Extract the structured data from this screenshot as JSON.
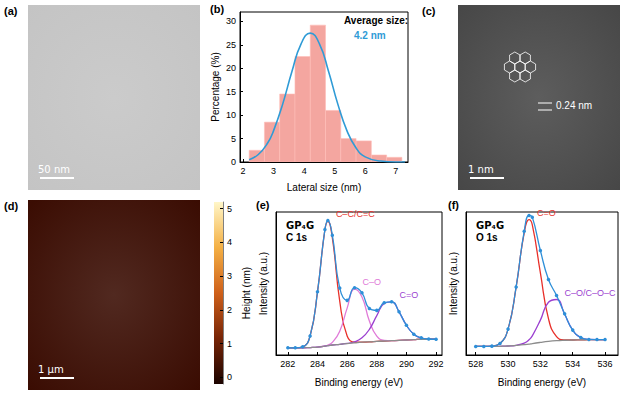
{
  "chart_data": [
    {
      "type": "image",
      "panel_label": "(a)",
      "scale_bar": "50 nm"
    },
    {
      "type": "histogram",
      "panel_label": "(b)",
      "x_label": "Lateral size (nm)",
      "y_label": "Percentage (%)",
      "annotations": [
        {
          "text": "Average size:",
          "color": "#000000"
        },
        {
          "text": "4.2 nm",
          "color": "#2f9bd6"
        }
      ],
      "xlim": [
        1.9,
        7.4
      ],
      "xticks": [
        2,
        3,
        4,
        5,
        6,
        7
      ],
      "ylim": [
        0,
        32
      ],
      "yticks": [
        0,
        5,
        10,
        15,
        20,
        25,
        30
      ],
      "series": [
        {
          "type": "histogram",
          "bins": [
            2.2,
            2.7,
            3.2,
            3.7,
            4.2,
            4.7,
            5.2,
            5.7,
            6.2,
            6.7,
            7.2
          ],
          "values": [
            2.5,
            8.5,
            14.5,
            22.5,
            29.2,
            11,
            5,
            4.5,
            1.5,
            1
          ],
          "color": "#f4a6a0"
        },
        {
          "type": "line",
          "x": [
            2.2,
            2.5,
            2.8,
            3.0,
            3.3,
            3.6,
            3.9,
            4.2,
            4.5,
            4.8,
            5.1,
            5.4,
            5.7,
            6.0,
            6.5,
            7.0,
            7.3
          ],
          "values": [
            0.5,
            1.6,
            4.0,
            6.7,
            12.4,
            19.3,
            25.2,
            27.5,
            25.2,
            19.3,
            12.4,
            6.7,
            3.0,
            1.1,
            0.2,
            0.0,
            0.0
          ],
          "color": "#2f9bd6"
        }
      ]
    },
    {
      "type": "image",
      "panel_label": "(c)",
      "scale_bar": "1 nm",
      "annotation": "0.24 nm"
    },
    {
      "type": "image",
      "panel_label": "(d)",
      "scale_bar": "1 μm",
      "colorbar": {
        "label": "Height (nm)",
        "range": [
          -0.2,
          5.2
        ],
        "ticks": [
          0,
          1,
          2,
          3,
          4,
          5
        ]
      }
    },
    {
      "type": "line",
      "panel_label": "(e)",
      "title": "GP₄G",
      "subtitle": "C 1s",
      "x_label": "Binding energy (eV)",
      "y_label": "Intensity (a.u.)",
      "tick_labels": "x",
      "xlim": [
        281.2,
        292.4
      ],
      "xticks": [
        282,
        284,
        286,
        288,
        290,
        292
      ],
      "ylim": [
        0,
        1
      ],
      "x": [
        282,
        282.5,
        283,
        283.5,
        284,
        284.5,
        284.7,
        285,
        285.5,
        286,
        286.5,
        287,
        287.5,
        288,
        288.5,
        289,
        289.5,
        290,
        290.5,
        291,
        291.5,
        292
      ],
      "series": [
        {
          "name": "C–C/C=C",
          "color": "#e8302a",
          "line_style": "solid",
          "values": [
            0.05,
            0.05,
            0.057,
            0.133,
            0.442,
            0.876,
            0.935,
            0.82,
            0.377,
            0.133,
            0.089,
            0.09,
            0.092,
            0.095,
            0.098,
            0.1,
            0.102,
            0.105,
            0.107,
            0.11,
            0.11,
            0.11
          ]
        },
        {
          "name": "C–O",
          "color": "#e07ad8",
          "line_style": "solid",
          "values": [
            0.05,
            0.05,
            0.05,
            0.052,
            0.055,
            0.064,
            0.07,
            0.088,
            0.166,
            0.328,
            0.46,
            0.405,
            0.238,
            0.132,
            0.103,
            0.1,
            0.102,
            0.105,
            0.107,
            0.11,
            0.11,
            0.11
          ]
        },
        {
          "name": "C=O",
          "color": "#9b3fd0",
          "line_style": "solid",
          "values": [
            0.05,
            0.05,
            0.05,
            0.052,
            0.055,
            0.062,
            0.065,
            0.07,
            0.075,
            0.081,
            0.092,
            0.12,
            0.179,
            0.275,
            0.361,
            0.372,
            0.302,
            0.208,
            0.145,
            0.12,
            0.112,
            0.11
          ]
        },
        {
          "color": "#8c8c8c",
          "line_style": "solid",
          "values": [
            0.05,
            0.05,
            0.05,
            0.052,
            0.055,
            0.062,
            0.065,
            0.07,
            0.075,
            0.08,
            0.085,
            0.09,
            0.092,
            0.095,
            0.098,
            0.1,
            0.102,
            0.105,
            0.107,
            0.11,
            0.11,
            0.11
          ]
        },
        {
          "color": "#2e8fd8",
          "line_style": "solid",
          "marker": "circle",
          "values": [
            0.05,
            0.05,
            0.057,
            0.133,
            0.442,
            0.878,
            0.94,
            0.838,
            0.468,
            0.382,
            0.471,
            0.435,
            0.325,
            0.312,
            0.366,
            0.372,
            0.302,
            0.208,
            0.145,
            0.12,
            0.112,
            0.11
          ]
        }
      ]
    },
    {
      "type": "line",
      "panel_label": "(f)",
      "title": "GP₄G",
      "subtitle": "O 1s",
      "x_label": "Binding energy (eV)",
      "y_label": "Intensity (a.u.)",
      "tick_labels": "x",
      "xlim": [
        527.4,
        536.8
      ],
      "xticks": [
        528,
        530,
        532,
        534,
        536
      ],
      "ylim": [
        0,
        1
      ],
      "x": [
        528,
        528.5,
        529,
        529.5,
        530,
        530.5,
        531,
        531.3,
        531.5,
        532,
        532.5,
        533,
        533.5,
        534,
        534.5,
        535,
        535.5,
        536
      ],
      "series": [
        {
          "name": "C=O",
          "color": "#e8302a",
          "line_style": "solid",
          "values": [
            0.06,
            0.06,
            0.062,
            0.08,
            0.181,
            0.475,
            0.854,
            0.946,
            0.91,
            0.575,
            0.254,
            0.128,
            0.106,
            0.105,
            0.106,
            0.107,
            0.108,
            0.108
          ]
        },
        {
          "name": "C–O/C–O–C",
          "color": "#9b3fd0",
          "line_style": "solid",
          "values": [
            0.06,
            0.06,
            0.06,
            0.061,
            0.063,
            0.068,
            0.083,
            0.106,
            0.134,
            0.244,
            0.369,
            0.388,
            0.285,
            0.174,
            0.122,
            0.109,
            0.108,
            0.108
          ]
        },
        {
          "color": "#8c8c8c",
          "line_style": "solid",
          "values": [
            0.06,
            0.06,
            0.06,
            0.061,
            0.063,
            0.067,
            0.072,
            0.076,
            0.08,
            0.088,
            0.095,
            0.1,
            0.103,
            0.105,
            0.106,
            0.107,
            0.108,
            0.108
          ]
        },
        {
          "color": "#2e8fd8",
          "line_style": "solid",
          "marker": "circle",
          "values": [
            0.06,
            0.06,
            0.062,
            0.08,
            0.181,
            0.476,
            0.865,
            0.976,
            0.964,
            0.731,
            0.528,
            0.416,
            0.288,
            0.174,
            0.122,
            0.109,
            0.108,
            0.108
          ]
        }
      ]
    }
  ]
}
